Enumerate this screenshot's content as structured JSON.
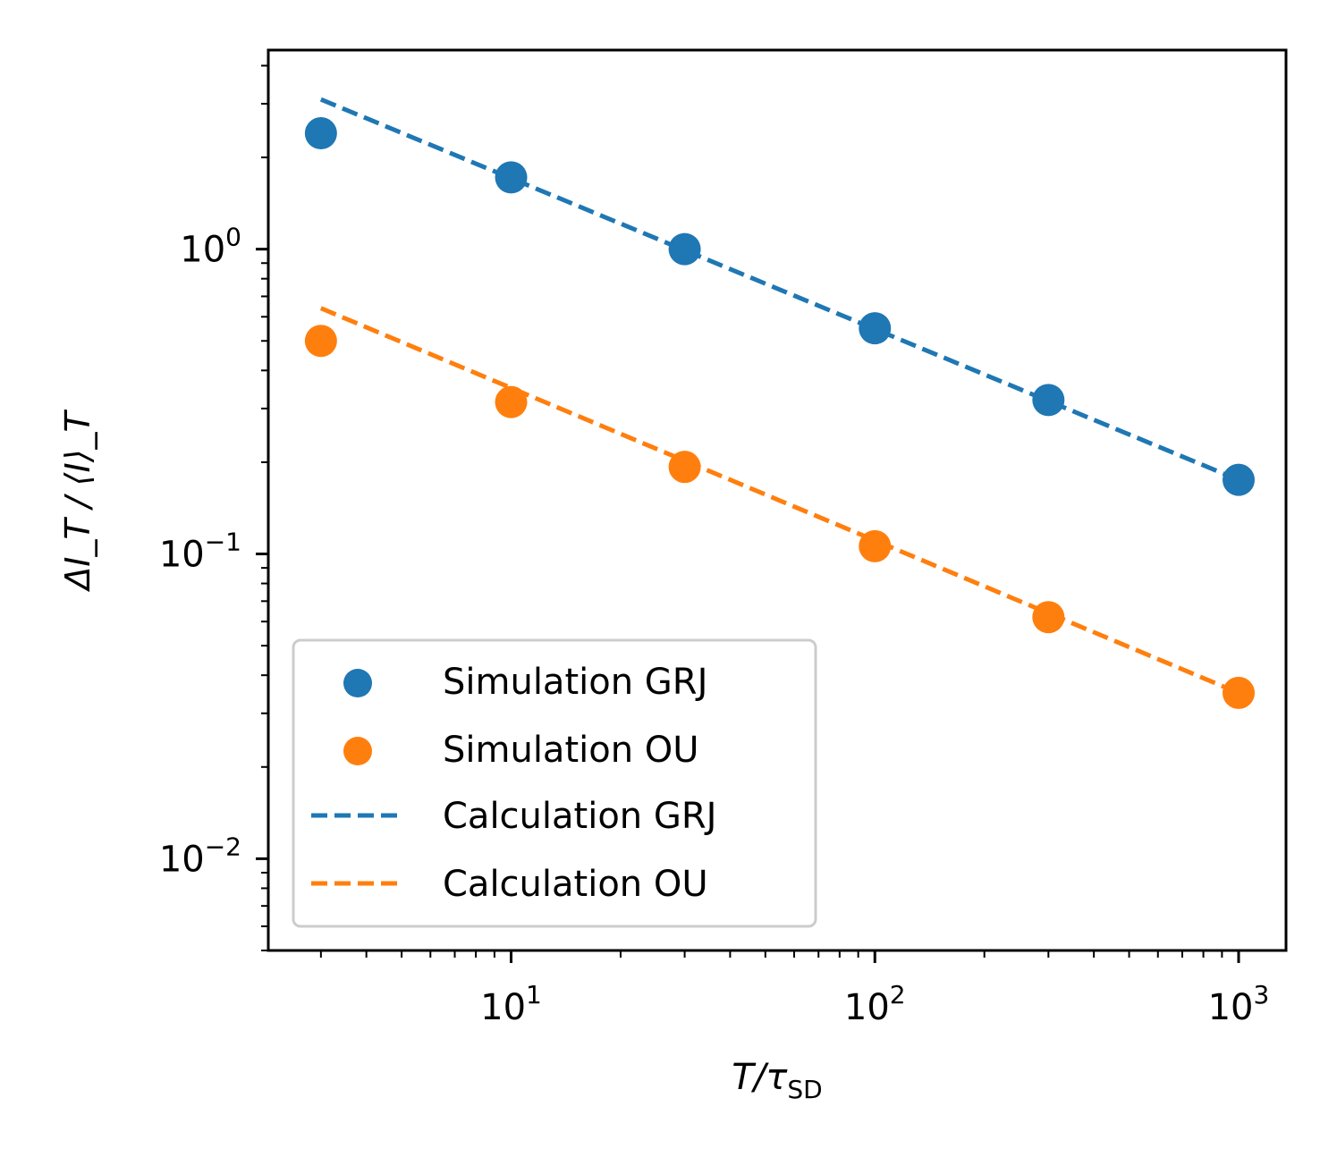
{
  "chart_data": {
    "type": "scatter",
    "title": "",
    "xscale": "log",
    "yscale": "log",
    "xlabel": {
      "main": "T/τ",
      "sub": "SD"
    },
    "ylabel": {
      "text": "ΔI_T / ⟨I⟩_T"
    },
    "xlim": [
      2.15,
      1350
    ],
    "ylim": [
      0.005,
      4.5
    ],
    "x_major_ticks": [
      {
        "value": 10,
        "base": "10",
        "exp": "1"
      },
      {
        "value": 100,
        "base": "10",
        "exp": "2"
      },
      {
        "value": 1000,
        "base": "10",
        "exp": "3"
      }
    ],
    "y_major_ticks": [
      {
        "value": 0.01,
        "base": "10",
        "exp": "−2"
      },
      {
        "value": 0.1,
        "base": "10",
        "exp": "−1"
      },
      {
        "value": 1,
        "base": "10",
        "exp": "0"
      }
    ],
    "grid": false,
    "legend_position": "lower-left",
    "series": [
      {
        "name": "Simulation GRJ",
        "kind": "scatter",
        "color": "#1f77b4",
        "x": [
          3,
          10,
          30,
          100,
          300,
          1000
        ],
        "y": [
          2.4,
          1.72,
          1.0,
          0.55,
          0.32,
          0.175
        ]
      },
      {
        "name": "Simulation OU",
        "kind": "scatter",
        "color": "#ff7f0e",
        "x": [
          3,
          10,
          30,
          100,
          300,
          1000
        ],
        "y": [
          0.5,
          0.315,
          0.193,
          0.106,
          0.062,
          0.035
        ]
      },
      {
        "name": "Calculation GRJ",
        "kind": "line",
        "style": "dashed",
        "color": "#1f77b4",
        "x": [
          3,
          1000
        ],
        "y": [
          3.1,
          0.175
        ]
      },
      {
        "name": "Calculation OU",
        "kind": "line",
        "style": "dashed",
        "color": "#ff7f0e",
        "x": [
          3,
          1000
        ],
        "y": [
          0.64,
          0.035
        ]
      }
    ]
  }
}
